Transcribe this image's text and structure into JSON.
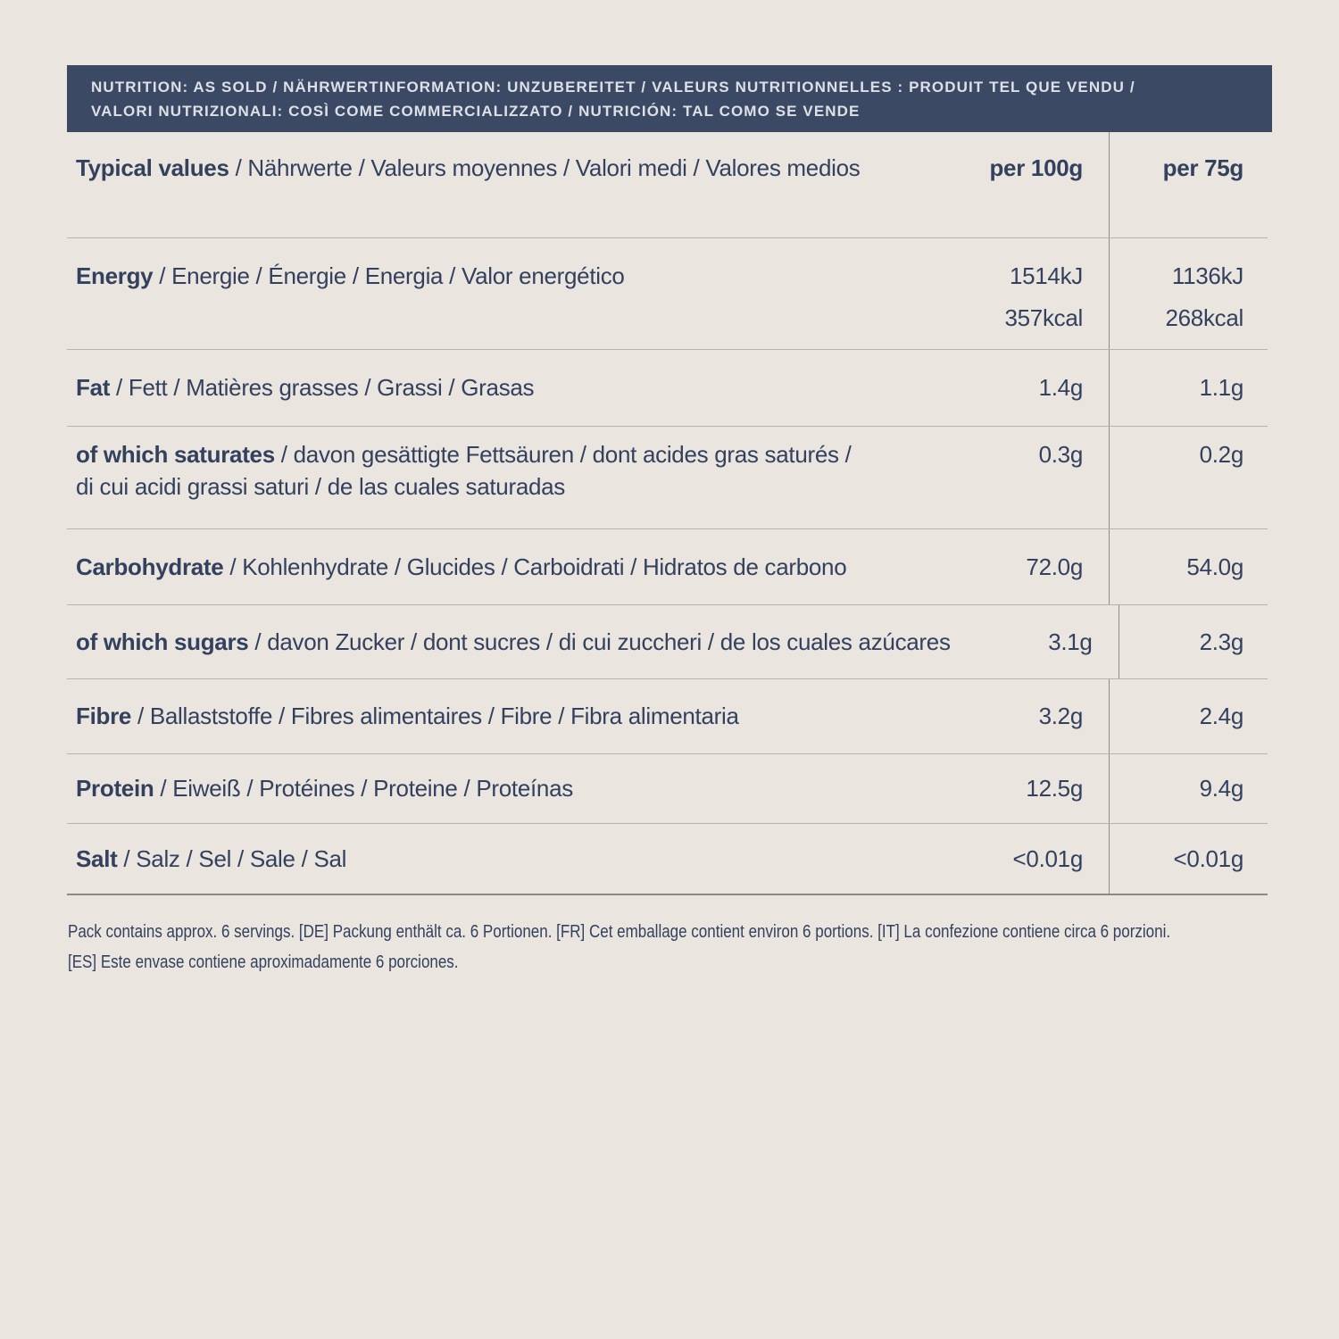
{
  "colors": {
    "background": "#eae6df",
    "header_bar_background": "#3b4965",
    "header_bar_text": "#dde1e7",
    "table_text": "#33405e",
    "row_divider": "#b7b4ad",
    "column_divider": "#8f8c86"
  },
  "header_bar": {
    "line1": "NUTRITION: AS SOLD / NÄHRWERTINFORMATION: UNZUBEREITET / VALEURS NUTRITIONNELLES : PRODUIT TEL QUE VENDU /",
    "line2": "VALORI NUTRIZIONALI: COSÌ COME COMMERCIALIZZATO / NUTRICIÓN: TAL COMO SE VENDE"
  },
  "table": {
    "head": {
      "label_bold": "Typical values",
      "label_rest": " / Nährwerte / Valeurs moyennes / Valori medi / Valores medios",
      "col_per100": "per 100g",
      "col_per75": "per 75g"
    },
    "rows": [
      {
        "label_bold": "Energy",
        "label_rest": " / Energie / Énergie / Energia / Valor energético",
        "per100_l1": "1514kJ",
        "per100_l2": "357kcal",
        "per75_l1": "1136kJ",
        "per75_l2": "268kcal"
      },
      {
        "label_bold": "Fat",
        "label_rest": " / Fett / Matières grasses / Grassi / Grasas",
        "per100": "1.4g",
        "per75": "1.1g"
      },
      {
        "label_bold": "of which saturates",
        "label_rest": " / davon gesättigte Fettsäuren / dont acides gras saturés /",
        "label_line2": "di cui acidi grassi saturi / de las cuales saturadas",
        "per100": "0.3g",
        "per75": "0.2g"
      },
      {
        "label_bold": "Carbohydrate",
        "label_rest": " / Kohlenhydrate / Glucides / Carboidrati / Hidratos de carbono",
        "per100": "72.0g",
        "per75": "54.0g"
      },
      {
        "label_bold": "of which sugars",
        "label_rest": " / davon Zucker / dont sucres / di cui zuccheri / de los cuales azúcares",
        "per100": "3.1g",
        "per75": "2.3g"
      },
      {
        "label_bold": "Fibre",
        "label_rest": " / Ballaststoffe / Fibres alimentaires / Fibre / Fibra alimentaria",
        "per100": "3.2g",
        "per75": "2.4g"
      },
      {
        "label_bold": "Protein",
        "label_rest": " / Eiweiß / Protéines / Proteine / Proteínas",
        "per100": "12.5g",
        "per75": "9.4g"
      },
      {
        "label_bold": "Salt",
        "label_rest": " / Salz / Sel / Sale / Sal",
        "per100": "<0.01g",
        "per75": "<0.01g"
      }
    ]
  },
  "footer": {
    "line1": "Pack contains approx. 6 servings. [DE] Packung enthält ca. 6 Portionen. [FR] Cet emballage contient environ 6 portions. [IT] La confezione contiene circa 6 porzioni.",
    "line2": "[ES] Este envase contiene aproximadamente 6 porciones."
  }
}
